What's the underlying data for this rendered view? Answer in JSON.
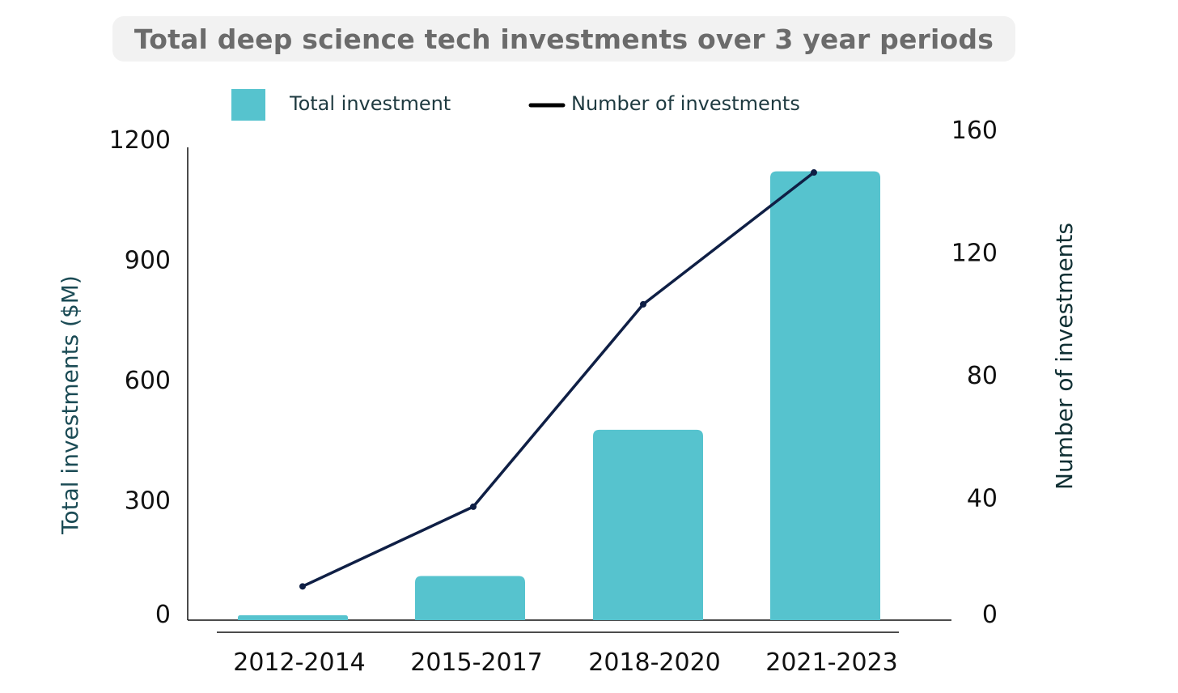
{
  "chart_data": {
    "type": "bar",
    "title": "Total deep science tech investments over 3 year periods",
    "categories": [
      "2012-2014",
      "2015-2017",
      "2018-2020",
      "2021-2023"
    ],
    "series": [
      {
        "name": "Total investment",
        "type": "bar",
        "axis": "left",
        "color": "#56c3ce",
        "values": [
          12,
          110,
          475,
          1120
        ]
      },
      {
        "name": "Number of investments",
        "type": "line",
        "axis": "right",
        "color": "#0f1f45",
        "values": [
          11,
          37,
          103,
          146
        ]
      }
    ],
    "ylabel": "Total investments ($M)",
    "y2label": "Number of investments",
    "ylim": [
      0,
      1200
    ],
    "y2lim": [
      0,
      160
    ],
    "yticks": [
      "0",
      "300",
      "600",
      "900",
      "1200"
    ],
    "y2ticks": [
      "0",
      "40",
      "80",
      "120",
      "160"
    ],
    "legend_position": "top"
  }
}
